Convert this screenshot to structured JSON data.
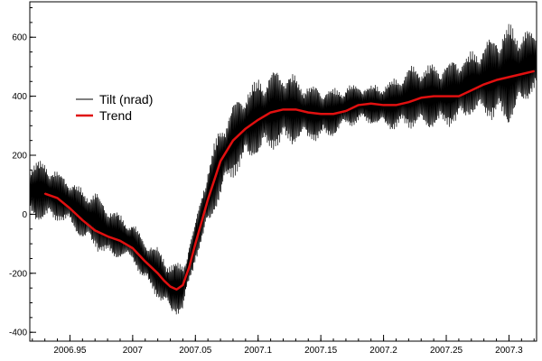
{
  "chart_data": {
    "type": "line",
    "title": "",
    "xlabel": "",
    "ylabel": "",
    "xlim": [
      2006.918,
      2007.322
    ],
    "ylim": [
      -430,
      720
    ],
    "x_ticks": [
      {
        "value": 2006.95,
        "label": "2006.95"
      },
      {
        "value": 2007.0,
        "label": "2007"
      },
      {
        "value": 2007.05,
        "label": "2007.05"
      },
      {
        "value": 2007.1,
        "label": "2007.1"
      },
      {
        "value": 2007.15,
        "label": "2007.15"
      },
      {
        "value": 2007.2,
        "label": "2007.2"
      },
      {
        "value": 2007.25,
        "label": "2007.25"
      },
      {
        "value": 2007.3,
        "label": "2007.3"
      }
    ],
    "y_ticks": [
      {
        "value": -400,
        "label": "-400"
      },
      {
        "value": -200,
        "label": "-200"
      },
      {
        "value": 0,
        "label": "0"
      },
      {
        "value": 200,
        "label": "200"
      },
      {
        "value": 400,
        "label": "400"
      },
      {
        "value": 600,
        "label": "600"
      }
    ],
    "grid": false,
    "legend_position": "upper-left",
    "series": [
      {
        "name": "Tilt (nrad)",
        "color": "#000000",
        "style": "dense oscillation around trend",
        "x": [
          2006.918,
          2006.93,
          2006.94,
          2006.95,
          2006.96,
          2006.97,
          2006.98,
          2006.99,
          2007.0,
          2007.01,
          2007.02,
          2007.03,
          2007.04,
          2007.05,
          2007.06,
          2007.07,
          2007.08,
          2007.09,
          2007.1,
          2007.11,
          2007.12,
          2007.13,
          2007.14,
          2007.15,
          2007.16,
          2007.17,
          2007.18,
          2007.19,
          2007.2,
          2007.21,
          2007.22,
          2007.23,
          2007.24,
          2007.25,
          2007.26,
          2007.27,
          2007.28,
          2007.29,
          2007.3,
          2007.31,
          2007.322
        ],
        "center": [
          80,
          80,
          60,
          40,
          0,
          -20,
          -60,
          -75,
          -95,
          -160,
          -200,
          -250,
          -250,
          -90,
          60,
          180,
          250,
          300,
          330,
          350,
          360,
          355,
          345,
          340,
          345,
          365,
          375,
          370,
          370,
          375,
          395,
          400,
          400,
          405,
          420,
          445,
          455,
          465,
          475,
          490,
          520
        ],
        "amplitude": [
          110,
          110,
          90,
          85,
          95,
          100,
          100,
          80,
          70,
          80,
          90,
          95,
          90,
          70,
          120,
          130,
          130,
          130,
          140,
          140,
          140,
          120,
          100,
          100,
          85,
          75,
          70,
          70,
          80,
          95,
          110,
          115,
          120,
          115,
          120,
          110,
          130,
          160,
          180,
          140,
          100
        ]
      },
      {
        "name": "Trend",
        "color": "#e01010",
        "x": [
          2006.93,
          2006.94,
          2006.95,
          2006.96,
          2006.97,
          2006.98,
          2006.99,
          2007.0,
          2007.01,
          2007.02,
          2007.025,
          2007.03,
          2007.035,
          2007.04,
          2007.045,
          2007.05,
          2007.06,
          2007.07,
          2007.08,
          2007.09,
          2007.1,
          2007.11,
          2007.12,
          2007.13,
          2007.14,
          2007.15,
          2007.16,
          2007.17,
          2007.18,
          2007.19,
          2007.2,
          2007.21,
          2007.22,
          2007.23,
          2007.24,
          2007.25,
          2007.26,
          2007.27,
          2007.28,
          2007.29,
          2007.3,
          2007.31,
          2007.32
        ],
        "y": [
          70,
          55,
          20,
          -20,
          -55,
          -75,
          -90,
          -115,
          -160,
          -200,
          -225,
          -245,
          -255,
          -240,
          -180,
          -100,
          50,
          180,
          250,
          290,
          320,
          345,
          355,
          355,
          345,
          340,
          340,
          350,
          370,
          375,
          370,
          370,
          380,
          395,
          400,
          400,
          400,
          420,
          440,
          455,
          465,
          475,
          485
        ]
      }
    ]
  }
}
